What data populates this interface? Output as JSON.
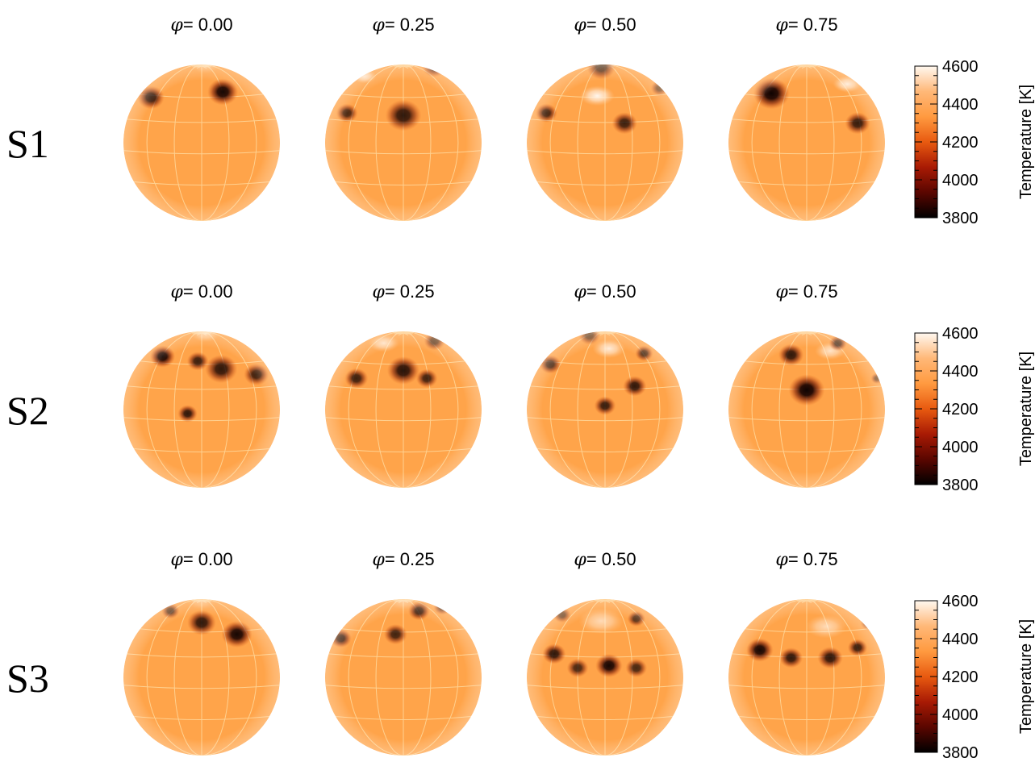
{
  "rows": [
    {
      "label": "S1",
      "phases": [
        "0.00",
        "0.25",
        "0.50",
        "0.75"
      ],
      "spots": [
        [
          {
            "dx": 0.27,
            "dy": -0.65,
            "r": 0.17,
            "s": 0.95
          },
          {
            "dx": -0.65,
            "dy": -0.58,
            "r": 0.15,
            "s": 0.85
          }
        ],
        [
          {
            "dx": 0.0,
            "dy": -0.35,
            "r": 0.2,
            "s": 0.85
          },
          {
            "dx": -0.72,
            "dy": -0.38,
            "r": 0.12,
            "s": 0.75
          },
          {
            "dx": 0.4,
            "dy": -0.98,
            "r": 0.14,
            "s": 0.85
          }
        ],
        [
          {
            "dx": 0.25,
            "dy": -0.25,
            "r": 0.14,
            "s": 0.8
          },
          {
            "dx": -0.75,
            "dy": -0.38,
            "r": 0.12,
            "s": 0.78
          },
          {
            "dx": -0.05,
            "dy": -0.97,
            "r": 0.16,
            "s": 0.75
          },
          {
            "dx": 0.7,
            "dy": -0.7,
            "r": 0.1,
            "s": 0.6
          }
        ],
        [
          {
            "dx": -0.45,
            "dy": -0.63,
            "r": 0.2,
            "s": 0.98
          },
          {
            "dx": 0.65,
            "dy": -0.25,
            "r": 0.14,
            "s": 0.82
          }
        ]
      ],
      "bright": [
        {
          "dx": 0.05,
          "dy": -0.99,
          "r": 0.14,
          "s": 0.3
        },
        {
          "dx": -0.5,
          "dy": -0.85,
          "r": 0.12,
          "s": 0.8
        },
        {
          "dx": -0.1,
          "dy": -0.6,
          "r": 0.17,
          "s": 0.9
        },
        {
          "dx": 0.52,
          "dy": -0.75,
          "r": 0.14,
          "s": 0.8
        }
      ]
    },
    {
      "label": "S2",
      "phases": [
        "0.00",
        "0.25",
        "0.50",
        "0.75"
      ],
      "spots": [
        [
          {
            "dx": -0.5,
            "dy": -0.68,
            "r": 0.14,
            "s": 0.95
          },
          {
            "dx": 0.25,
            "dy": -0.52,
            "r": 0.18,
            "s": 0.85
          },
          {
            "dx": 0.7,
            "dy": -0.45,
            "r": 0.14,
            "s": 0.8
          },
          {
            "dx": -0.18,
            "dy": 0.05,
            "r": 0.11,
            "s": 0.85
          },
          {
            "dx": -0.05,
            "dy": -0.62,
            "r": 0.12,
            "s": 0.8
          }
        ],
        [
          {
            "dx": -0.6,
            "dy": -0.4,
            "r": 0.13,
            "s": 0.8
          },
          {
            "dx": 0.0,
            "dy": -0.5,
            "r": 0.18,
            "s": 0.88
          },
          {
            "dx": 0.3,
            "dy": -0.4,
            "r": 0.12,
            "s": 0.78
          },
          {
            "dx": 0.4,
            "dy": -0.88,
            "r": 0.12,
            "s": 0.7
          }
        ],
        [
          {
            "dx": 0.38,
            "dy": -0.3,
            "r": 0.13,
            "s": 0.85
          },
          {
            "dx": 0.0,
            "dy": -0.05,
            "r": 0.12,
            "s": 0.82
          },
          {
            "dx": -0.7,
            "dy": -0.58,
            "r": 0.12,
            "s": 0.78
          },
          {
            "dx": 0.5,
            "dy": -0.72,
            "r": 0.1,
            "s": 0.72
          },
          {
            "dx": -0.2,
            "dy": -0.95,
            "r": 0.12,
            "s": 0.65
          }
        ],
        [
          {
            "dx": 0.0,
            "dy": -0.25,
            "r": 0.2,
            "s": 0.98
          },
          {
            "dx": -0.2,
            "dy": -0.7,
            "r": 0.14,
            "s": 0.85
          },
          {
            "dx": 0.4,
            "dy": -0.85,
            "r": 0.1,
            "s": 0.75
          },
          {
            "dx": 0.9,
            "dy": -0.4,
            "r": 0.07,
            "s": 0.6
          }
        ]
      ],
      "bright": [
        {
          "dx": 0.05,
          "dy": -0.97,
          "r": 0.14,
          "s": 0.5
        },
        {
          "dx": -0.25,
          "dy": -0.85,
          "r": 0.15,
          "s": 0.7
        },
        {
          "dx": 0.05,
          "dy": -0.78,
          "r": 0.16,
          "s": 0.8
        },
        {
          "dx": 0.3,
          "dy": -0.75,
          "r": 0.15,
          "s": 0.7
        }
      ]
    },
    {
      "label": "S3",
      "phases": [
        "0.00",
        "0.25",
        "0.50",
        "0.75"
      ],
      "spots": [
        [
          {
            "dx": 0.45,
            "dy": -0.55,
            "r": 0.17,
            "s": 0.95
          },
          {
            "dx": 0.0,
            "dy": -0.7,
            "r": 0.16,
            "s": 0.85
          },
          {
            "dx": -0.4,
            "dy": -0.85,
            "r": 0.1,
            "s": 0.7
          }
        ],
        [
          {
            "dx": -0.8,
            "dy": -0.5,
            "r": 0.12,
            "s": 0.85
          },
          {
            "dx": -0.1,
            "dy": -0.55,
            "r": 0.13,
            "s": 0.78
          },
          {
            "dx": 0.2,
            "dy": -0.85,
            "r": 0.12,
            "s": 0.8
          },
          {
            "dx": 0.5,
            "dy": -0.9,
            "r": 0.1,
            "s": 0.72
          }
        ],
        [
          {
            "dx": 0.05,
            "dy": -0.15,
            "r": 0.15,
            "s": 0.95
          },
          {
            "dx": -0.65,
            "dy": -0.3,
            "r": 0.13,
            "s": 0.85
          },
          {
            "dx": -0.35,
            "dy": -0.12,
            "r": 0.12,
            "s": 0.75
          },
          {
            "dx": 0.4,
            "dy": -0.12,
            "r": 0.12,
            "s": 0.75
          },
          {
            "dx": 0.4,
            "dy": -0.75,
            "r": 0.1,
            "s": 0.72
          },
          {
            "dx": -0.55,
            "dy": -0.8,
            "r": 0.1,
            "s": 0.65
          }
        ],
        [
          {
            "dx": -0.6,
            "dy": -0.35,
            "r": 0.15,
            "s": 0.95
          },
          {
            "dx": -0.2,
            "dy": -0.25,
            "r": 0.13,
            "s": 0.85
          },
          {
            "dx": 0.3,
            "dy": -0.25,
            "r": 0.14,
            "s": 0.85
          },
          {
            "dx": 0.65,
            "dy": -0.38,
            "r": 0.11,
            "s": 0.8
          },
          {
            "dx": 0.8,
            "dy": -0.7,
            "r": 0.1,
            "s": 0.7
          }
        ]
      ],
      "bright": [
        {
          "dx": 0.0,
          "dy": -0.97,
          "r": 0.14,
          "s": 0.3
        },
        {
          "dx": 0.0,
          "dy": -0.97,
          "r": 0.14,
          "s": 0.3
        },
        {
          "dx": -0.05,
          "dy": -0.72,
          "r": 0.22,
          "s": 0.6
        },
        {
          "dx": 0.25,
          "dy": -0.65,
          "r": 0.2,
          "s": 0.6
        }
      ]
    }
  ],
  "phase_symbol": "φ",
  "phase_equals": "= ",
  "colorbar": {
    "title": "Temperature [K]",
    "ticks": [
      "4600",
      "4400",
      "4200",
      "4000",
      "3800"
    ],
    "min": 3800,
    "max": 4600,
    "colors": [
      "#fff8f0",
      "#ffb878",
      "#ff9a40",
      "#e85a10",
      "#a81a04",
      "#5a0600",
      "#000000"
    ]
  },
  "colors": {
    "photosphere": "#ffa44a",
    "grid": "#ffe0a8",
    "spot_core": "#1a0200",
    "spot_mid": "#7a1a05"
  }
}
